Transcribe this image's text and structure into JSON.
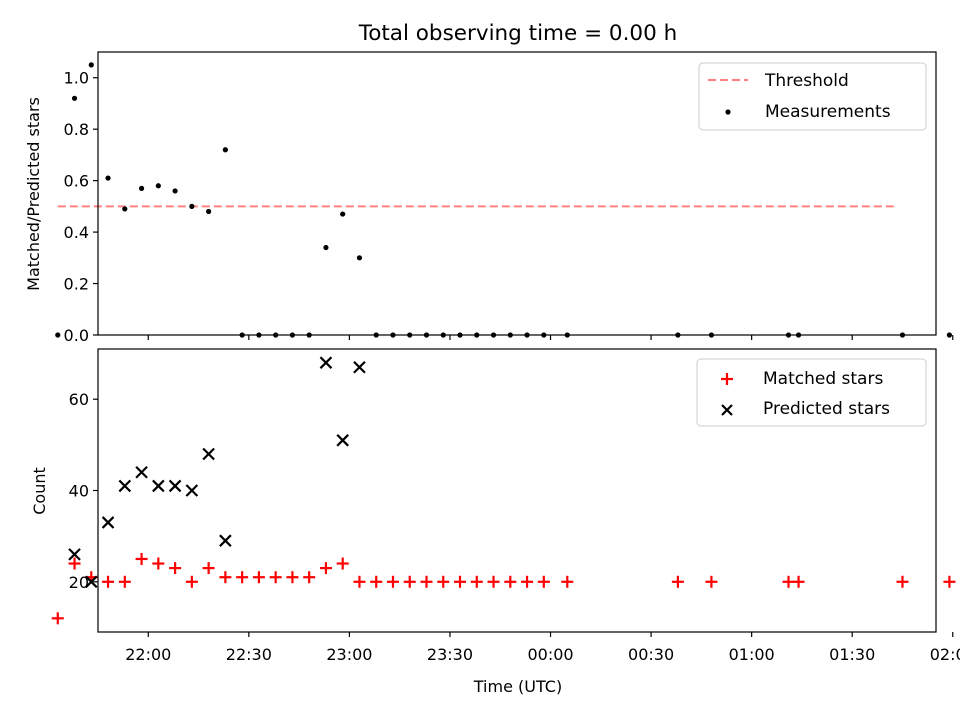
{
  "title": "Total observing time = 0.00 h",
  "x_axis": {
    "label": "Time (UTC)",
    "range_minutes": [
      -75,
      175
    ],
    "ticks": [
      {
        "minute": -60,
        "label": "22:00"
      },
      {
        "minute": -30,
        "label": "22:30"
      },
      {
        "minute": 0,
        "label": "23:00"
      },
      {
        "minute": 30,
        "label": "23:30"
      },
      {
        "minute": 60,
        "label": "00:00"
      },
      {
        "minute": 90,
        "label": "00:30"
      },
      {
        "minute": 120,
        "label": "01:00"
      },
      {
        "minute": 150,
        "label": "01:30"
      },
      {
        "minute": 180,
        "label": "02:00"
      }
    ]
  },
  "chart_data": [
    {
      "type": "scatter",
      "name": "ratio_panel",
      "ylabel": "Matched/Predicted stars",
      "ylim": [
        0,
        1.1
      ],
      "yticks": [
        {
          "value": 0.0,
          "label": "0.0"
        },
        {
          "value": 0.2,
          "label": "0.2"
        },
        {
          "value": 0.4,
          "label": "0.4"
        },
        {
          "value": 0.6,
          "label": "0.6"
        },
        {
          "value": 0.8,
          "label": "0.8"
        },
        {
          "value": 1.0,
          "label": "1.0"
        }
      ],
      "legend_position": "top-right",
      "threshold": {
        "name": "Threshold",
        "value": 0.5,
        "x_range": [
          -87,
          163
        ],
        "color": "#ff8080"
      },
      "series": [
        {
          "name": "Measurements",
          "color": "#000000",
          "marker": "dot",
          "x": [
            -87,
            -82,
            -77,
            -72,
            -67,
            -62,
            -57,
            -52,
            -47,
            -42,
            -37,
            -32,
            -27,
            -22,
            -17,
            -12,
            -7,
            -2,
            3,
            8,
            13,
            18,
            23,
            28,
            33,
            38,
            43,
            48,
            53,
            58,
            65,
            98,
            108,
            131,
            134,
            165,
            179
          ],
          "y": [
            0,
            0.92,
            1.05,
            0.61,
            0.49,
            0.57,
            0.58,
            0.56,
            0.5,
            0.48,
            0.72,
            0,
            0,
            0,
            0,
            0,
            0.34,
            0.47,
            0.3,
            0,
            0,
            0,
            0,
            0,
            0,
            0,
            0,
            0,
            0,
            0,
            0,
            0,
            0,
            0,
            0,
            0,
            0
          ]
        }
      ]
    },
    {
      "type": "scatter",
      "name": "count_panel",
      "ylabel": "Count",
      "ylim": [
        9,
        71
      ],
      "yticks": [
        {
          "value": 20,
          "label": "20"
        },
        {
          "value": 40,
          "label": "40"
        },
        {
          "value": 60,
          "label": "60"
        }
      ],
      "legend_position": "top-right",
      "series": [
        {
          "name": "Matched stars",
          "color": "#ff0000",
          "marker": "plus",
          "x": [
            -87,
            -82,
            -77,
            -72,
            -67,
            -62,
            -57,
            -52,
            -47,
            -42,
            -37,
            -32,
            -27,
            -22,
            -17,
            -12,
            -7,
            -2,
            3,
            8,
            13,
            18,
            23,
            28,
            33,
            38,
            43,
            48,
            53,
            58,
            65,
            98,
            108,
            131,
            134,
            165,
            179
          ],
          "y": [
            12,
            24,
            21,
            20,
            20,
            25,
            24,
            23,
            20,
            23,
            21,
            21,
            21,
            21,
            21,
            21,
            23,
            24,
            20,
            20,
            20,
            20,
            20,
            20,
            20,
            20,
            20,
            20,
            20,
            20,
            20,
            20,
            20,
            20,
            20,
            20,
            20
          ]
        },
        {
          "name": "Predicted stars",
          "color": "#000000",
          "marker": "x",
          "x": [
            -82,
            -77,
            -72,
            -67,
            -62,
            -57,
            -52,
            -47,
            -42,
            -37,
            -7,
            -2,
            3
          ],
          "y": [
            26,
            20,
            33,
            41,
            44,
            41,
            41,
            40,
            48,
            29,
            68,
            51,
            67
          ]
        }
      ]
    }
  ]
}
